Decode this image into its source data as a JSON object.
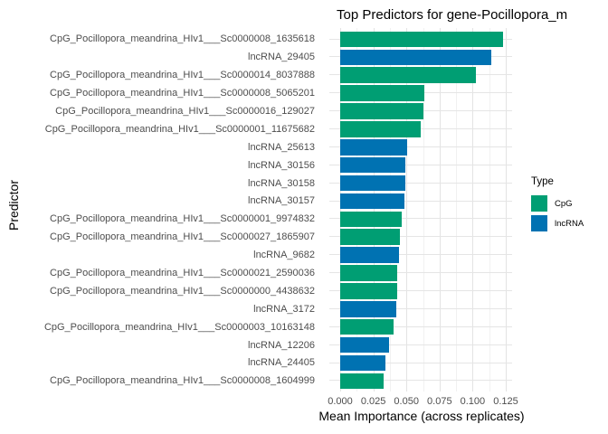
{
  "colors": {
    "CpG": "#009E73",
    "lncRNA": "#0072B2",
    "grid_major": "#e3e3e3",
    "grid_minor": "#f1f1f1",
    "axis_text": "#4d4d4d",
    "text": "#000000",
    "background": "#ffffff"
  },
  "chart_data": {
    "type": "bar",
    "orientation": "horizontal",
    "title": "Top Predictors for gene-Pocillopora_m",
    "xlabel": "Mean Importance (across replicates)",
    "ylabel": "Predictor",
    "xlim": [
      0,
      0.138
    ],
    "x_ticks": [
      0,
      0.025,
      0.05,
      0.075,
      0.1,
      0.125
    ],
    "x_tick_labels": [
      "0.000",
      "0.025",
      "0.050",
      "0.075",
      "0.100",
      "0.125"
    ],
    "grid": true,
    "legend": {
      "title": "Type",
      "position": "right",
      "entries": [
        {
          "label": "CpG",
          "color": "#009E73"
        },
        {
          "label": "lncRNA",
          "color": "#0072B2"
        }
      ]
    },
    "bars": [
      {
        "label": "CpG_Pocillopora_meandrina_HIv1___Sc0000008_1635618",
        "type": "CpG",
        "value": 0.123
      },
      {
        "label": "lncRNA_29405",
        "type": "lncRNA",
        "value": 0.114
      },
      {
        "label": "CpG_Pocillopora_meandrina_HIv1___Sc0000014_8037888",
        "type": "CpG",
        "value": 0.1025
      },
      {
        "label": "CpG_Pocillopora_meandrina_HIv1___Sc0000008_5065201",
        "type": "CpG",
        "value": 0.0635
      },
      {
        "label": "CpG_Pocillopora_meandrina_HIv1___Sc0000016_129027",
        "type": "CpG",
        "value": 0.0625
      },
      {
        "label": "CpG_Pocillopora_meandrina_HIv1___Sc0000001_11675682",
        "type": "CpG",
        "value": 0.061
      },
      {
        "label": "lncRNA_25613",
        "type": "lncRNA",
        "value": 0.0505
      },
      {
        "label": "lncRNA_30156",
        "type": "lncRNA",
        "value": 0.049
      },
      {
        "label": "lncRNA_30158",
        "type": "lncRNA",
        "value": 0.049
      },
      {
        "label": "lncRNA_30157",
        "type": "lncRNA",
        "value": 0.0487
      },
      {
        "label": "CpG_Pocillopora_meandrina_HIv1___Sc0000001_9974832",
        "type": "CpG",
        "value": 0.0464
      },
      {
        "label": "CpG_Pocillopora_meandrina_HIv1___Sc0000027_1865907",
        "type": "CpG",
        "value": 0.0449
      },
      {
        "label": "lncRNA_9682",
        "type": "lncRNA",
        "value": 0.0443
      },
      {
        "label": "CpG_Pocillopora_meandrina_HIv1___Sc0000021_2590036",
        "type": "CpG",
        "value": 0.0431
      },
      {
        "label": "CpG_Pocillopora_meandrina_HIv1___Sc0000000_4438632",
        "type": "CpG",
        "value": 0.0428
      },
      {
        "label": "lncRNA_3172",
        "type": "lncRNA",
        "value": 0.0421
      },
      {
        "label": "CpG_Pocillopora_meandrina_HIv1___Sc0000003_10163148",
        "type": "CpG",
        "value": 0.0405
      },
      {
        "label": "lncRNA_12206",
        "type": "lncRNA",
        "value": 0.0367
      },
      {
        "label": "lncRNA_24405",
        "type": "lncRNA",
        "value": 0.034
      },
      {
        "label": "CpG_Pocillopora_meandrina_HIv1___Sc0000008_1604999",
        "type": "CpG",
        "value": 0.0326
      }
    ]
  }
}
